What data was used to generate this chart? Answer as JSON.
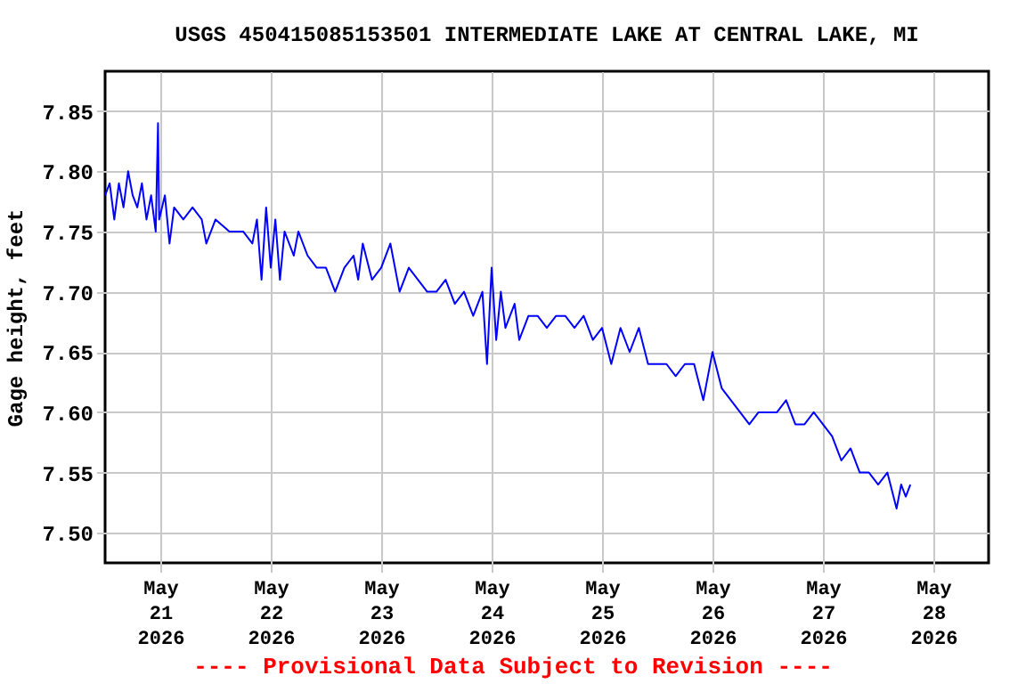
{
  "chart_data": {
    "type": "line",
    "title": "USGS 450415085153501 INTERMEDIATE LAKE AT CENTRAL LAKE, MI",
    "ylabel": "Gage height, feet",
    "annotations": [
      "---- Provisional Data Subject to Revision ----"
    ],
    "xlim": [
      "2026-05-20T12:00",
      "2026-05-28T12:00"
    ],
    "xticks": [
      {
        "value": "2026-05-21T00:00",
        "label": "May\n21\n2026"
      },
      {
        "value": "2026-05-22T00:00",
        "label": "May\n22\n2026"
      },
      {
        "value": "2026-05-23T00:00",
        "label": "May\n23\n2026"
      },
      {
        "value": "2026-05-24T00:00",
        "label": "May\n24\n2026"
      },
      {
        "value": "2026-05-25T00:00",
        "label": "May\n25\n2026"
      },
      {
        "value": "2026-05-26T00:00",
        "label": "May\n26\n2026"
      },
      {
        "value": "2026-05-27T00:00",
        "label": "May\n27\n2026"
      },
      {
        "value": "2026-05-28T00:00",
        "label": "May\n28\n2026"
      }
    ],
    "ylim": [
      7.475,
      7.883
    ],
    "yticks": [
      {
        "value": 7.5,
        "label": "7.50"
      },
      {
        "value": 7.55,
        "label": "7.55"
      },
      {
        "value": 7.6,
        "label": "7.60"
      },
      {
        "value": 7.65,
        "label": "7.65"
      },
      {
        "value": 7.7,
        "label": "7.70"
      },
      {
        "value": 7.75,
        "label": "7.75"
      },
      {
        "value": 7.8,
        "label": "7.80"
      },
      {
        "value": 7.85,
        "label": "7.85"
      }
    ],
    "grid": true,
    "line_style": "solid",
    "series": [
      {
        "color": "#0000ff",
        "x": [
          "2026-05-20T12:00",
          "2026-05-20T13:00",
          "2026-05-20T14:00",
          "2026-05-20T15:00",
          "2026-05-20T16:00",
          "2026-05-20T17:00",
          "2026-05-20T18:00",
          "2026-05-20T19:00",
          "2026-05-20T20:00",
          "2026-05-20T21:00",
          "2026-05-20T22:00",
          "2026-05-20T23:00",
          "2026-05-20T23:30",
          "2026-05-20T23:45",
          "2026-05-21T01:00",
          "2026-05-21T02:00",
          "2026-05-21T03:00",
          "2026-05-21T05:00",
          "2026-05-21T07:00",
          "2026-05-21T09:00",
          "2026-05-21T10:00",
          "2026-05-21T12:00",
          "2026-05-21T15:00",
          "2026-05-21T18:00",
          "2026-05-21T20:00",
          "2026-05-21T21:00",
          "2026-05-21T22:00",
          "2026-05-21T23:00",
          "2026-05-22T00:00",
          "2026-05-22T01:00",
          "2026-05-22T02:00",
          "2026-05-22T03:00",
          "2026-05-22T05:00",
          "2026-05-22T06:00",
          "2026-05-22T08:00",
          "2026-05-22T10:00",
          "2026-05-22T12:00",
          "2026-05-22T14:00",
          "2026-05-22T16:00",
          "2026-05-22T18:00",
          "2026-05-22T19:00",
          "2026-05-22T20:00",
          "2026-05-22T22:00",
          "2026-05-23T00:00",
          "2026-05-23T02:00",
          "2026-05-23T04:00",
          "2026-05-23T06:00",
          "2026-05-23T08:00",
          "2026-05-23T10:00",
          "2026-05-23T12:00",
          "2026-05-23T14:00",
          "2026-05-23T16:00",
          "2026-05-23T18:00",
          "2026-05-23T20:00",
          "2026-05-23T22:00",
          "2026-05-23T23:00",
          "2026-05-24T00:00",
          "2026-05-24T01:00",
          "2026-05-24T02:00",
          "2026-05-24T03:00",
          "2026-05-24T05:00",
          "2026-05-24T06:00",
          "2026-05-24T08:00",
          "2026-05-24T10:00",
          "2026-05-24T12:00",
          "2026-05-24T14:00",
          "2026-05-24T16:00",
          "2026-05-24T18:00",
          "2026-05-24T20:00",
          "2026-05-24T22:00",
          "2026-05-25T00:00",
          "2026-05-25T02:00",
          "2026-05-25T04:00",
          "2026-05-25T06:00",
          "2026-05-25T08:00",
          "2026-05-25T10:00",
          "2026-05-25T12:00",
          "2026-05-25T14:00",
          "2026-05-25T16:00",
          "2026-05-25T18:00",
          "2026-05-25T20:00",
          "2026-05-25T22:00",
          "2026-05-26T00:00",
          "2026-05-26T02:00",
          "2026-05-26T04:00",
          "2026-05-26T06:00",
          "2026-05-26T08:00",
          "2026-05-26T10:00",
          "2026-05-26T12:00",
          "2026-05-26T14:00",
          "2026-05-26T16:00",
          "2026-05-26T18:00",
          "2026-05-26T20:00",
          "2026-05-26T22:00",
          "2026-05-27T00:00",
          "2026-05-27T02:00",
          "2026-05-27T04:00",
          "2026-05-27T06:00",
          "2026-05-27T08:00",
          "2026-05-27T10:00",
          "2026-05-27T12:00",
          "2026-05-27T14:00",
          "2026-05-27T16:00",
          "2026-05-27T17:00",
          "2026-05-27T18:00",
          "2026-05-27T19:00"
        ],
        "values": [
          7.78,
          7.79,
          7.76,
          7.79,
          7.77,
          7.8,
          7.78,
          7.77,
          7.79,
          7.76,
          7.78,
          7.75,
          7.84,
          7.76,
          7.78,
          7.74,
          7.77,
          7.76,
          7.77,
          7.76,
          7.74,
          7.76,
          7.75,
          7.75,
          7.74,
          7.76,
          7.71,
          7.77,
          7.72,
          7.76,
          7.71,
          7.75,
          7.73,
          7.75,
          7.73,
          7.72,
          7.72,
          7.7,
          7.72,
          7.73,
          7.71,
          7.74,
          7.71,
          7.72,
          7.74,
          7.7,
          7.72,
          7.71,
          7.7,
          7.7,
          7.71,
          7.69,
          7.7,
          7.68,
          7.7,
          7.64,
          7.72,
          7.66,
          7.7,
          7.67,
          7.69,
          7.66,
          7.68,
          7.68,
          7.67,
          7.68,
          7.68,
          7.67,
          7.68,
          7.66,
          7.67,
          7.64,
          7.67,
          7.65,
          7.67,
          7.64,
          7.64,
          7.64,
          7.63,
          7.64,
          7.64,
          7.61,
          7.65,
          7.62,
          7.61,
          7.6,
          7.59,
          7.6,
          7.6,
          7.6,
          7.61,
          7.59,
          7.59,
          7.6,
          7.59,
          7.58,
          7.56,
          7.57,
          7.55,
          7.55,
          7.54,
          7.55,
          7.52,
          7.54,
          7.53,
          7.54
        ]
      }
    ]
  }
}
